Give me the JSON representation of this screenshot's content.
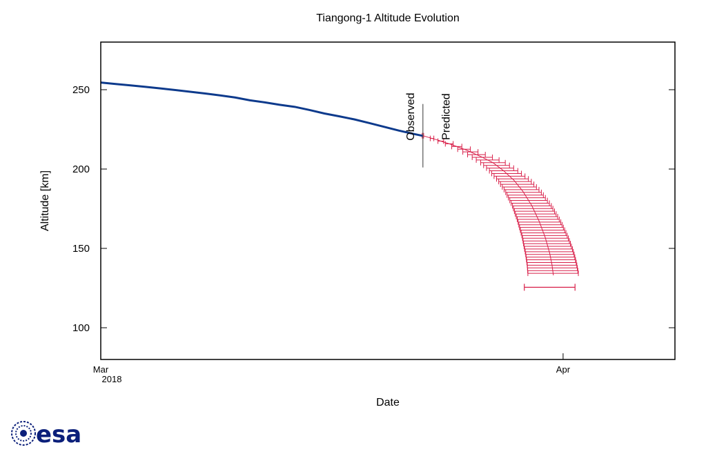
{
  "chart_data": {
    "type": "line",
    "title": "Tiangong-1 Altitude Evolution",
    "xlabel": "Date",
    "ylabel": "Altitude [km]",
    "xlim_days": [
      0,
      38.5
    ],
    "ylim": [
      80,
      280
    ],
    "y_ticks": [
      100,
      150,
      200,
      250
    ],
    "x_ticks": [
      {
        "day": 0,
        "label": "Mar",
        "sublabel": "2018"
      },
      {
        "day": 31,
        "label": "Apr",
        "sublabel": ""
      }
    ],
    "grid": false,
    "split_day": 21.6,
    "split_line_range": [
      201,
      241
    ],
    "annotations": [
      {
        "text": "Observed",
        "day": 21.0,
        "y": 233
      },
      {
        "text": "Predicted",
        "day": 23.4,
        "y": 233
      }
    ],
    "series": [
      {
        "name": "Observed",
        "color": "#0d3a8c",
        "points": [
          {
            "x": 0,
            "y": 254.5
          },
          {
            "x": 1,
            "y": 253.6
          },
          {
            "x": 2,
            "y": 252.7
          },
          {
            "x": 3,
            "y": 251.8
          },
          {
            "x": 4,
            "y": 250.8
          },
          {
            "x": 5,
            "y": 249.8
          },
          {
            "x": 6,
            "y": 248.7
          },
          {
            "x": 7,
            "y": 247.6
          },
          {
            "x": 8,
            "y": 246.4
          },
          {
            "x": 9,
            "y": 245.1
          },
          {
            "x": 10,
            "y": 243.3
          },
          {
            "x": 11,
            "y": 242.0
          },
          {
            "x": 12,
            "y": 240.5
          },
          {
            "x": 13,
            "y": 239.2
          },
          {
            "x": 14,
            "y": 237.2
          },
          {
            "x": 15,
            "y": 235.0
          },
          {
            "x": 16,
            "y": 233.2
          },
          {
            "x": 17,
            "y": 231.3
          },
          {
            "x": 18,
            "y": 229.0
          },
          {
            "x": 19,
            "y": 226.6
          },
          {
            "x": 20,
            "y": 224.2
          },
          {
            "x": 21,
            "y": 222.1
          },
          {
            "x": 21.6,
            "y": 220.9
          }
        ]
      },
      {
        "name": "Predicted",
        "color": "#d81e48",
        "center": [
          {
            "x": 21.6,
            "y": 221.0
          },
          {
            "x": 22.5,
            "y": 218.5
          },
          {
            "x": 23.5,
            "y": 215.5
          },
          {
            "x": 24.5,
            "y": 212.0
          },
          {
            "x": 25.5,
            "y": 207.8
          },
          {
            "x": 26.3,
            "y": 204.0
          },
          {
            "x": 27.0,
            "y": 199.0
          },
          {
            "x": 27.7,
            "y": 193.0
          },
          {
            "x": 28.3,
            "y": 186.0
          },
          {
            "x": 28.9,
            "y": 177.0
          },
          {
            "x": 29.4,
            "y": 167.0
          },
          {
            "x": 29.8,
            "y": 157.0
          },
          {
            "x": 30.1,
            "y": 147.0
          },
          {
            "x": 30.25,
            "y": 140.0
          },
          {
            "x": 30.35,
            "y": 133.0
          }
        ],
        "spread": [
          {
            "y": 221.0,
            "half_width_days": 0.05
          },
          {
            "y": 215.0,
            "half_width_days": 0.3
          },
          {
            "y": 205.0,
            "half_width_days": 0.8
          },
          {
            "y": 195.0,
            "half_width_days": 1.05
          },
          {
            "y": 185.0,
            "half_width_days": 1.2
          },
          {
            "y": 165.0,
            "half_width_days": 1.45
          },
          {
            "y": 150.0,
            "half_width_days": 1.6
          },
          {
            "y": 133.0,
            "half_width_days": 1.7
          }
        ],
        "ylim_bars": [
          133,
          221
        ],
        "bar_step_km": 1.7,
        "final_bar": {
          "y": 125.5,
          "x_min": 28.4,
          "x_max": 31.8
        }
      }
    ]
  },
  "logo": {
    "text": "esa",
    "color": "#0b1f7a"
  }
}
